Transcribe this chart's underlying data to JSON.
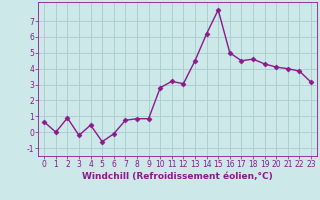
{
  "xlabel": "Windchill (Refroidissement éolien,°C)",
  "x": [
    0,
    1,
    2,
    3,
    4,
    5,
    6,
    7,
    8,
    9,
    10,
    11,
    12,
    13,
    14,
    15,
    16,
    17,
    18,
    19,
    20,
    21,
    22,
    23
  ],
  "y": [
    0.65,
    0.0,
    0.9,
    -0.2,
    0.45,
    -0.6,
    -0.1,
    0.75,
    0.85,
    0.85,
    2.8,
    3.2,
    3.05,
    4.5,
    6.2,
    7.7,
    5.0,
    4.5,
    4.6,
    4.3,
    4.1,
    4.0,
    3.85,
    3.15
  ],
  "line_color": "#8b1a8b",
  "marker": "D",
  "marker_size": 2.5,
  "ylim": [
    -1.5,
    8.2
  ],
  "xlim": [
    -0.5,
    23.5
  ],
  "yticks": [
    -1,
    0,
    1,
    2,
    3,
    4,
    5,
    6,
    7
  ],
  "xticks": [
    0,
    1,
    2,
    3,
    4,
    5,
    6,
    7,
    8,
    9,
    10,
    11,
    12,
    13,
    14,
    15,
    16,
    17,
    18,
    19,
    20,
    21,
    22,
    23
  ],
  "bg_color": "#cce8e8",
  "grid_color": "#aacccc",
  "line_width": 1.0,
  "tick_fontsize": 5.5,
  "label_fontsize": 6.5
}
